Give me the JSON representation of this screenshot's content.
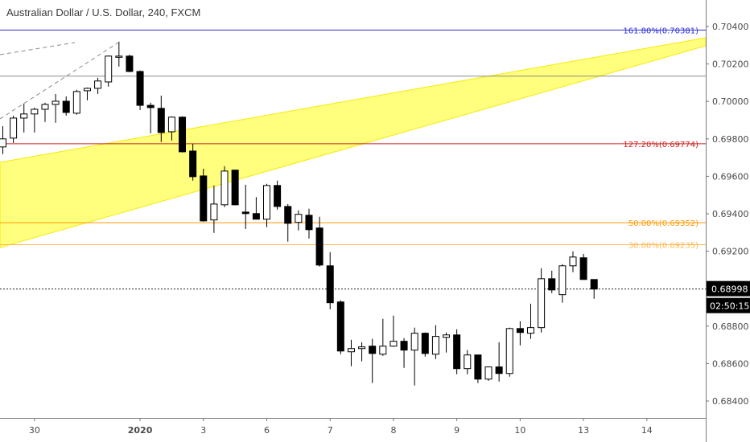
{
  "header": {
    "title": "Australian Dollar / U.S. Dollar, 240, FXCM"
  },
  "colors": {
    "up_fill": "#ffffff",
    "down_fill": "#000000",
    "candle_border": "#000000",
    "fib_161": "#2f2fd6",
    "fib_127": "#cc2222",
    "fib_50": "#ff9800",
    "fib_30": "#ffb74d",
    "band": "#ffff77",
    "band_edge": "#f5e800",
    "hline": "#8a8a8a"
  },
  "chart_data": {
    "type": "candlestick",
    "title": "Australian Dollar / U.S. Dollar, 240, FXCM",
    "ylim": [
      0.6832,
      0.7061
    ],
    "yticks": [
      "0.70400",
      "0.70200",
      "0.70000",
      "0.69800",
      "0.69600",
      "0.69400",
      "0.69200",
      "0.68800",
      "0.68600",
      "0.68400"
    ],
    "xticks": [
      {
        "label": "30",
        "bar": 3
      },
      {
        "label": "2020",
        "bar": 13
      },
      {
        "label": "3",
        "bar": 19
      },
      {
        "label": "6",
        "bar": 25
      },
      {
        "label": "7",
        "bar": 31
      },
      {
        "label": "8",
        "bar": 37
      },
      {
        "label": "9",
        "bar": 43
      },
      {
        "label": "10",
        "bar": 49
      },
      {
        "label": "13",
        "bar": 55
      },
      {
        "label": "14",
        "bar": 61
      }
    ],
    "ohlc": [
      [
        0.69757,
        0.69868,
        0.69718,
        0.698
      ],
      [
        0.69804,
        0.69924,
        0.69778,
        0.69911
      ],
      [
        0.69911,
        0.69989,
        0.69834,
        0.69933
      ],
      [
        0.69933,
        0.69967,
        0.69834,
        0.69958
      ],
      [
        0.69958,
        0.69993,
        0.6989,
        0.69984
      ],
      [
        0.69984,
        0.7004,
        0.69886,
        0.70001
      ],
      [
        0.70001,
        0.70027,
        0.69924,
        0.69941
      ],
      [
        0.69937,
        0.70062,
        0.69929,
        0.70053
      ],
      [
        0.70057,
        0.70074,
        0.70006,
        0.7007
      ],
      [
        0.7007,
        0.70126,
        0.7004,
        0.70109
      ],
      [
        0.70104,
        0.70246,
        0.70079,
        0.70242
      ],
      [
        0.70242,
        0.70319,
        0.70186,
        0.70242
      ],
      [
        0.70242,
        0.7025,
        0.70156,
        0.7016
      ],
      [
        0.7016,
        0.70165,
        0.69954,
        0.69979
      ],
      [
        0.69979,
        0.69993,
        0.6983,
        0.69967
      ],
      [
        0.69963,
        0.70031,
        0.69783,
        0.69834
      ],
      [
        0.69838,
        0.6992,
        0.69791,
        0.69916
      ],
      [
        0.69916,
        0.6992,
        0.69727,
        0.69731
      ],
      [
        0.69735,
        0.69774,
        0.69577,
        0.69598
      ],
      [
        0.69602,
        0.69641,
        0.69358,
        0.69362
      ],
      [
        0.69367,
        0.69551,
        0.69298,
        0.69452
      ],
      [
        0.69448,
        0.69654,
        0.69435,
        0.69628
      ],
      [
        0.69633,
        0.69635,
        0.69445,
        0.69448
      ],
      [
        0.69409,
        0.69555,
        0.69319,
        0.69401
      ],
      [
        0.69401,
        0.69489,
        0.69369,
        0.69371
      ],
      [
        0.69371,
        0.6956,
        0.69328,
        0.69551
      ],
      [
        0.69551,
        0.69577,
        0.69422,
        0.69439
      ],
      [
        0.69439,
        0.69452,
        0.69251,
        0.69349
      ],
      [
        0.69354,
        0.69418,
        0.69311,
        0.69397
      ],
      [
        0.69392,
        0.69427,
        0.69268,
        0.69315
      ],
      [
        0.69324,
        0.69384,
        0.69118,
        0.69126
      ],
      [
        0.69122,
        0.69195,
        0.6889,
        0.68925
      ],
      [
        0.68929,
        0.68938,
        0.6865,
        0.68667
      ],
      [
        0.68663,
        0.68727,
        0.68586,
        0.6868
      ],
      [
        0.6868,
        0.68714,
        0.68612,
        0.68689
      ],
      [
        0.68693,
        0.68732,
        0.68496,
        0.68654
      ],
      [
        0.6865,
        0.68839,
        0.68641,
        0.68693
      ],
      [
        0.68693,
        0.68856,
        0.68689,
        0.68719
      ],
      [
        0.68719,
        0.68736,
        0.68577,
        0.68672
      ],
      [
        0.68672,
        0.68792,
        0.68483,
        0.68762
      ],
      [
        0.68762,
        0.68766,
        0.68637,
        0.68654
      ],
      [
        0.6865,
        0.68805,
        0.68624,
        0.68745
      ],
      [
        0.6874,
        0.68766,
        0.68659,
        0.68753
      ],
      [
        0.68753,
        0.68783,
        0.68543,
        0.68573
      ],
      [
        0.68573,
        0.68672,
        0.68543,
        0.68646
      ],
      [
        0.68646,
        0.68646,
        0.68496,
        0.68517
      ],
      [
        0.68517,
        0.68582,
        0.68508,
        0.68582
      ],
      [
        0.68582,
        0.68714,
        0.68504,
        0.68547
      ],
      [
        0.68547,
        0.68792,
        0.6853,
        0.68787
      ],
      [
        0.68787,
        0.68826,
        0.68697,
        0.68766
      ],
      [
        0.68762,
        0.6892,
        0.68732,
        0.68792
      ],
      [
        0.68792,
        0.69109,
        0.68766,
        0.69053
      ],
      [
        0.69053,
        0.69096,
        0.68976,
        0.68993
      ],
      [
        0.68968,
        0.69131,
        0.68925,
        0.69122
      ],
      [
        0.69122,
        0.69199,
        0.69088,
        0.69169
      ],
      [
        0.69165,
        0.69186,
        0.69049,
        0.69049
      ],
      [
        0.69049,
        0.69049,
        0.68946,
        0.68998
      ]
    ],
    "fib_levels": [
      {
        "label": "161.80%(0.70381)",
        "price": 0.70381,
        "color_key": "fib_161"
      },
      {
        "label": "127.20%(0.69774)",
        "price": 0.69774,
        "color_key": "fib_127"
      },
      {
        "label": "50.00%(0.69352)",
        "price": 0.69352,
        "color_key": "fib_50"
      },
      {
        "label": "30.00%(0.69235)",
        "price": 0.69235,
        "color_key": "fib_30"
      }
    ],
    "horizontal_line_price": 0.70135,
    "last_price": {
      "label": "0.68998",
      "price": 0.68998
    },
    "countdown": "02:50:15"
  }
}
